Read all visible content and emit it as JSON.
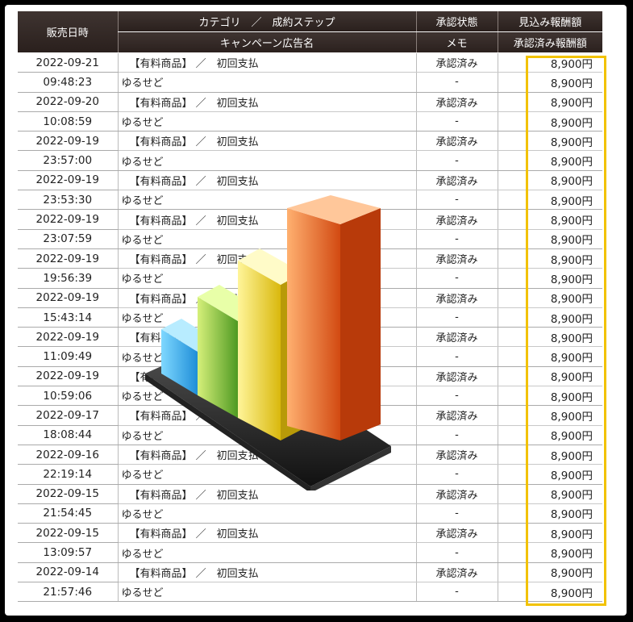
{
  "table": {
    "headers": {
      "date": "販売日時",
      "category_top": "カテゴリ　／　成約ステップ",
      "category_bottom": "キャンペーン広告名",
      "status_top": "承認状態",
      "status_bottom": "メモ",
      "amount_top": "見込み報酬額",
      "amount_bottom": "承認済み報酬額"
    },
    "rows": [
      {
        "date": "2022-09-21",
        "time": "09:48:23",
        "category": "【有料商品】 ／　初回支払",
        "campaign": "ゆるせど",
        "status": "承認済み",
        "memo": "-",
        "expected": "8,900円",
        "approved": "8,900円"
      },
      {
        "date": "2022-09-20",
        "time": "10:08:59",
        "category": "【有料商品】 ／　初回支払",
        "campaign": "ゆるせど",
        "status": "承認済み",
        "memo": "-",
        "expected": "8,900円",
        "approved": "8,900円"
      },
      {
        "date": "2022-09-19",
        "time": "23:57:00",
        "category": "【有料商品】 ／　初回支払",
        "campaign": "ゆるせど",
        "status": "承認済み",
        "memo": "-",
        "expected": "8,900円",
        "approved": "8,900円"
      },
      {
        "date": "2022-09-19",
        "time": "23:53:30",
        "category": "【有料商品】 ／　初回支払",
        "campaign": "ゆるせど",
        "status": "承認済み",
        "memo": "-",
        "expected": "8,900円",
        "approved": "8,900円"
      },
      {
        "date": "2022-09-19",
        "time": "23:07:59",
        "category": "【有料商品】 ／　初回支払",
        "campaign": "ゆるせど",
        "status": "承認済み",
        "memo": "-",
        "expected": "8,900円",
        "approved": "8,900円"
      },
      {
        "date": "2022-09-19",
        "time": "19:56:39",
        "category": "【有料商品】 ／　初回支払",
        "campaign": "ゆるせど",
        "status": "承認済み",
        "memo": "-",
        "expected": "8,900円",
        "approved": "8,900円"
      },
      {
        "date": "2022-09-19",
        "time": "15:43:14",
        "category": "【有料商品】 ／　初回支払",
        "campaign": "ゆるせど",
        "status": "承認済み",
        "memo": "-",
        "expected": "8,900円",
        "approved": "8,900円"
      },
      {
        "date": "2022-09-19",
        "time": "11:09:49",
        "category": "【有料商品】 ／　初回支払",
        "campaign": "ゆるせど",
        "status": "承認済み",
        "memo": "-",
        "expected": "8,900円",
        "approved": "8,900円"
      },
      {
        "date": "2022-09-19",
        "time": "10:59:06",
        "category": "【有料商品】 ／　初回支払",
        "campaign": "ゆるせど",
        "status": "承認済み",
        "memo": "-",
        "expected": "8,900円",
        "approved": "8,900円"
      },
      {
        "date": "2022-09-17",
        "time": "18:08:44",
        "category": "【有料商品】 ／　初回支払",
        "campaign": "ゆるせど",
        "status": "承認済み",
        "memo": "-",
        "expected": "8,900円",
        "approved": "8,900円"
      },
      {
        "date": "2022-09-16",
        "time": "22:19:14",
        "category": "【有料商品】 ／　初回支払",
        "campaign": "ゆるせど",
        "status": "承認済み",
        "memo": "-",
        "expected": "8,900円",
        "approved": "8,900円"
      },
      {
        "date": "2022-09-15",
        "time": "21:54:45",
        "category": "【有料商品】 ／　初回支払",
        "campaign": "ゆるせど",
        "status": "承認済み",
        "memo": "-",
        "expected": "8,900円",
        "approved": "8,900円"
      },
      {
        "date": "2022-09-15",
        "time": "13:09:57",
        "category": "【有料商品】 ／　初回支払",
        "campaign": "ゆるせど",
        "status": "承認済み",
        "memo": "-",
        "expected": "8,900円",
        "approved": "8,900円"
      },
      {
        "date": "2022-09-14",
        "time": "21:57:46",
        "category": "【有料商品】 ／　初回支払",
        "campaign": "ゆるせど",
        "status": "承認済み",
        "memo": "-",
        "expected": "8,900円",
        "approved": "8,900円"
      }
    ]
  },
  "colors": {
    "header_bg": "#2f2522",
    "highlight": "#f2c200"
  },
  "overlay_icon": "bar-chart-3d-icon"
}
